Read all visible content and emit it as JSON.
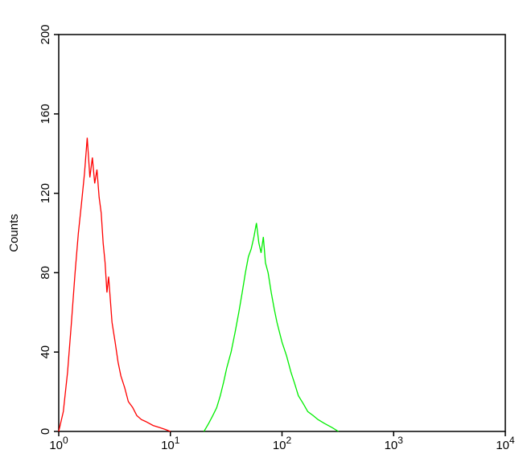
{
  "chart_data": {
    "type": "line",
    "y_label": "Counts",
    "xscale": "log",
    "xlim": [
      1,
      10000
    ],
    "ylim": [
      0,
      200
    ],
    "xticks": [
      {
        "value": 1,
        "label": "10",
        "exp": "0"
      },
      {
        "value": 10,
        "label": "10",
        "exp": "1"
      },
      {
        "value": 100,
        "label": "10",
        "exp": "2"
      },
      {
        "value": 1000,
        "label": "10",
        "exp": "3"
      },
      {
        "value": 10000,
        "label": "10",
        "exp": "4"
      }
    ],
    "yticks": [
      0,
      40,
      80,
      120,
      160,
      200
    ],
    "series": [
      {
        "color": "#ff0000",
        "x": [
          1.0,
          1.1,
          1.2,
          1.3,
          1.4,
          1.5,
          1.6,
          1.7,
          1.8,
          1.9,
          2.0,
          2.1,
          2.2,
          2.3,
          2.4,
          2.5,
          2.6,
          2.7,
          2.8,
          3.0,
          3.2,
          3.4,
          3.6,
          3.9,
          4.2,
          4.6,
          5.0,
          5.5,
          6.0,
          7.0,
          8.0,
          9.0,
          10
        ],
        "values": [
          0,
          10,
          30,
          55,
          80,
          100,
          115,
          130,
          148,
          128,
          138,
          125,
          132,
          118,
          110,
          95,
          85,
          70,
          78,
          55,
          45,
          35,
          28,
          22,
          15,
          12,
          8,
          6,
          5,
          3,
          2,
          1,
          0
        ]
      },
      {
        "color": "#00ee00",
        "x": [
          20,
          22,
          24,
          26,
          28,
          30,
          32,
          35,
          38,
          41,
          44,
          47,
          50,
          53,
          56,
          59,
          62,
          65,
          68,
          71,
          75,
          80,
          85,
          90,
          100,
          110,
          120,
          130,
          140,
          155,
          170,
          190,
          210,
          240,
          280,
          320
        ],
        "values": [
          0,
          4,
          8,
          12,
          18,
          25,
          32,
          40,
          50,
          60,
          70,
          80,
          88,
          92,
          98,
          105,
          95,
          90,
          98,
          85,
          80,
          70,
          62,
          55,
          45,
          38,
          30,
          24,
          18,
          14,
          10,
          8,
          6,
          4,
          2,
          0
        ]
      }
    ]
  }
}
